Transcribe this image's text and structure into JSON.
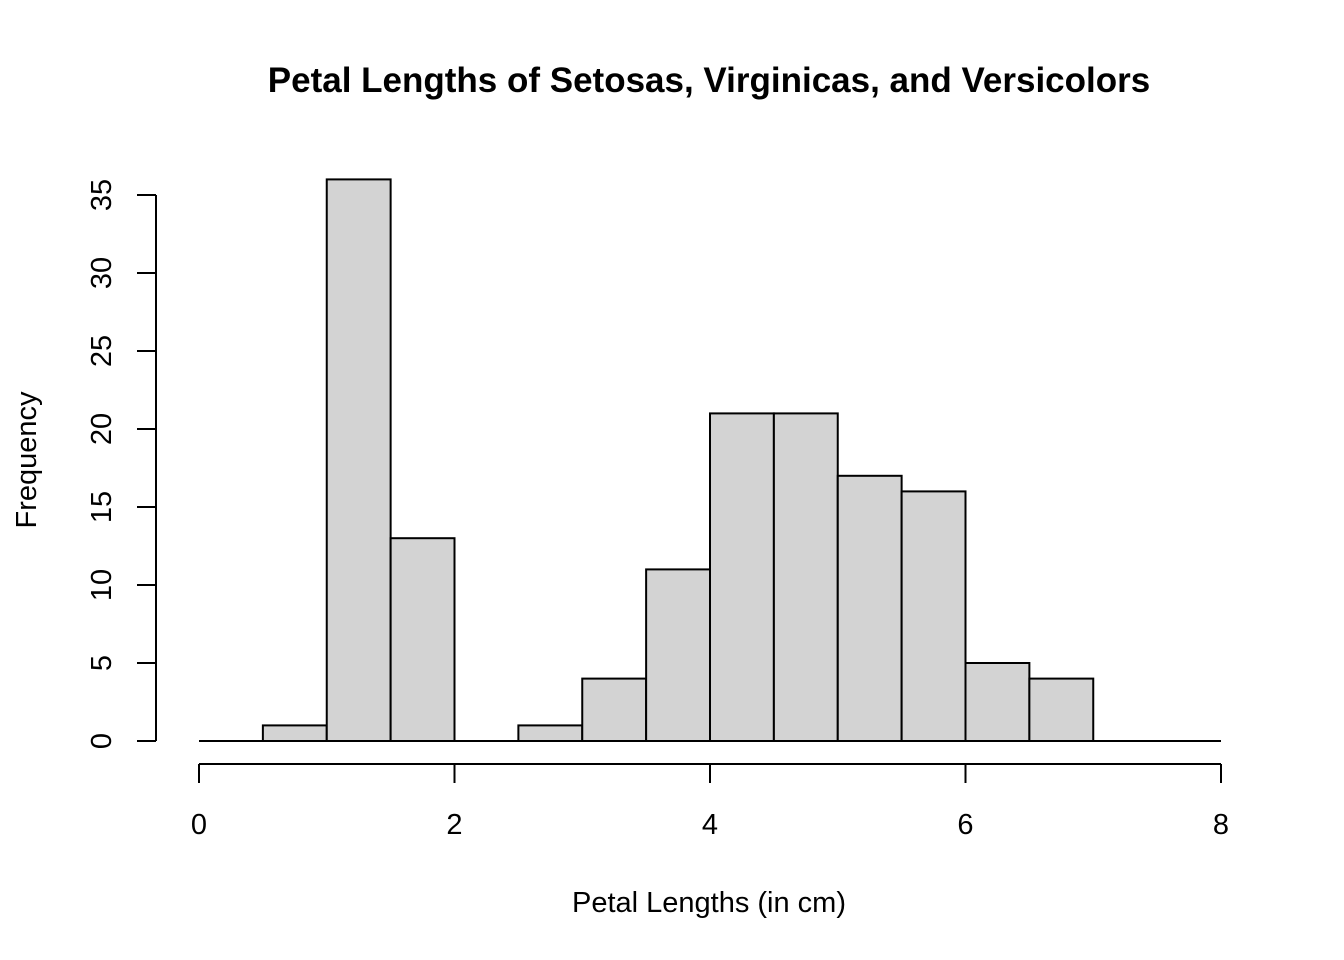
{
  "chart_data": {
    "type": "bar",
    "title": "Petal Lengths of Setosas, Virginicas, and Versicolors",
    "xlabel": "Petal Lengths (in cm)",
    "ylabel": "Frequency",
    "bins": [
      {
        "from": 0.0,
        "to": 0.5,
        "value": 0
      },
      {
        "from": 0.5,
        "to": 1.0,
        "value": 1
      },
      {
        "from": 1.0,
        "to": 1.5,
        "value": 36
      },
      {
        "from": 1.5,
        "to": 2.0,
        "value": 13
      },
      {
        "from": 2.0,
        "to": 2.5,
        "value": 0
      },
      {
        "from": 2.5,
        "to": 3.0,
        "value": 1
      },
      {
        "from": 3.0,
        "to": 3.5,
        "value": 4
      },
      {
        "from": 3.5,
        "to": 4.0,
        "value": 11
      },
      {
        "from": 4.0,
        "to": 4.5,
        "value": 21
      },
      {
        "from": 4.5,
        "to": 5.0,
        "value": 21
      },
      {
        "from": 5.0,
        "to": 5.5,
        "value": 17
      },
      {
        "from": 5.5,
        "to": 6.0,
        "value": 16
      },
      {
        "from": 6.0,
        "to": 6.5,
        "value": 5
      },
      {
        "from": 6.5,
        "to": 7.0,
        "value": 4
      },
      {
        "from": 7.0,
        "to": 7.5,
        "value": 0
      },
      {
        "from": 7.5,
        "to": 8.0,
        "value": 0
      }
    ],
    "xlim": [
      0,
      8
    ],
    "ylim": [
      0,
      35
    ],
    "x_ticks": [
      "0",
      "2",
      "4",
      "6",
      "8"
    ],
    "y_ticks": [
      "0",
      "5",
      "10",
      "15",
      "20",
      "25",
      "30",
      "35"
    ],
    "bar_fill": "#d3d3d3",
    "bar_stroke": "#000000",
    "grid": false,
    "legend": "none"
  }
}
